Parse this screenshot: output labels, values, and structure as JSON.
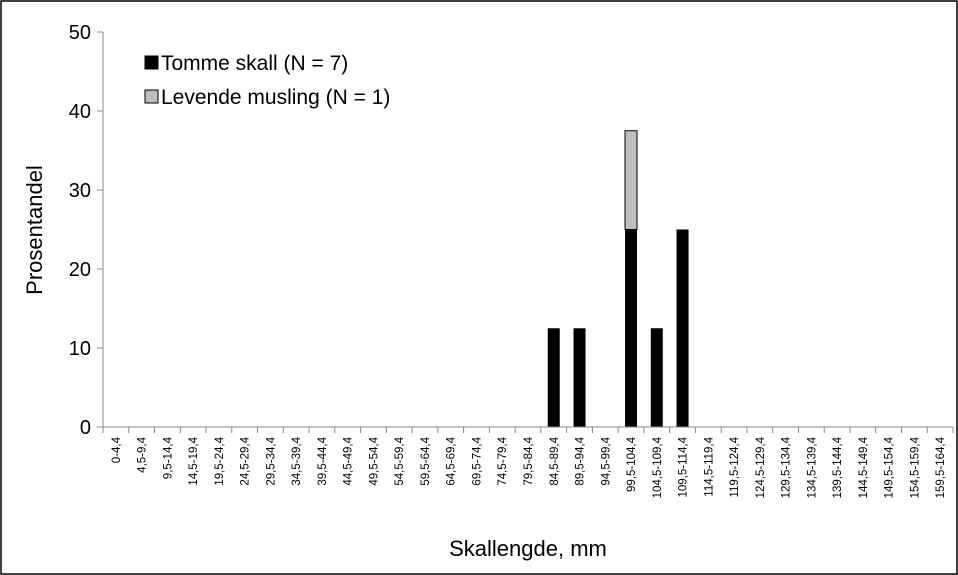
{
  "chart_data": {
    "type": "stacked_bar",
    "x_label": "Skallengde, mm",
    "y_label": "Prosentandel",
    "categories": [
      "0-4,4",
      "4,5-9,4",
      "9,5-14,4",
      "14,5-19,4",
      "19,5-24,4",
      "24,5-29,4",
      "29,5-34,4",
      "34,5-39,4",
      "39,5-44,4",
      "44,5-49,4",
      "49,5-54,4",
      "54,5-59,4",
      "59,5-64,4",
      "64,5-69,4",
      "69,5-74,4",
      "74,5-79,4",
      "79,5-84,4",
      "84,5-89,4",
      "89,5-94,4",
      "94,5-99,4",
      "99,5-104,4",
      "104,5-109,4",
      "109,5-114,4",
      "114,5-119,4",
      "119,5-124,4",
      "124,5-129,4",
      "129,5-134,4",
      "134,5-139,4",
      "139,5-144,4",
      "144,5-149,4",
      "149,5-154,4",
      "154,5-159,4",
      "159,5-164,4"
    ],
    "series": [
      {
        "name": "Tomme skall (N = 7)",
        "color": "#000000",
        "values": [
          0,
          0,
          0,
          0,
          0,
          0,
          0,
          0,
          0,
          0,
          0,
          0,
          0,
          0,
          0,
          0,
          0,
          12.5,
          12.5,
          0,
          25,
          12.5,
          25,
          0,
          0,
          0,
          0,
          0,
          0,
          0,
          0,
          0,
          0
        ]
      },
      {
        "name": "Levende musling (N = 1)",
        "color": "#bfbfbf",
        "values": [
          0,
          0,
          0,
          0,
          0,
          0,
          0,
          0,
          0,
          0,
          0,
          0,
          0,
          0,
          0,
          0,
          0,
          0,
          0,
          0,
          12.5,
          0,
          0,
          0,
          0,
          0,
          0,
          0,
          0,
          0,
          0,
          0,
          0
        ]
      }
    ],
    "ylim": [
      0,
      50
    ],
    "yticks": [
      0,
      10,
      20,
      30,
      40,
      50
    ],
    "legend": "upper left",
    "grid": false
  }
}
